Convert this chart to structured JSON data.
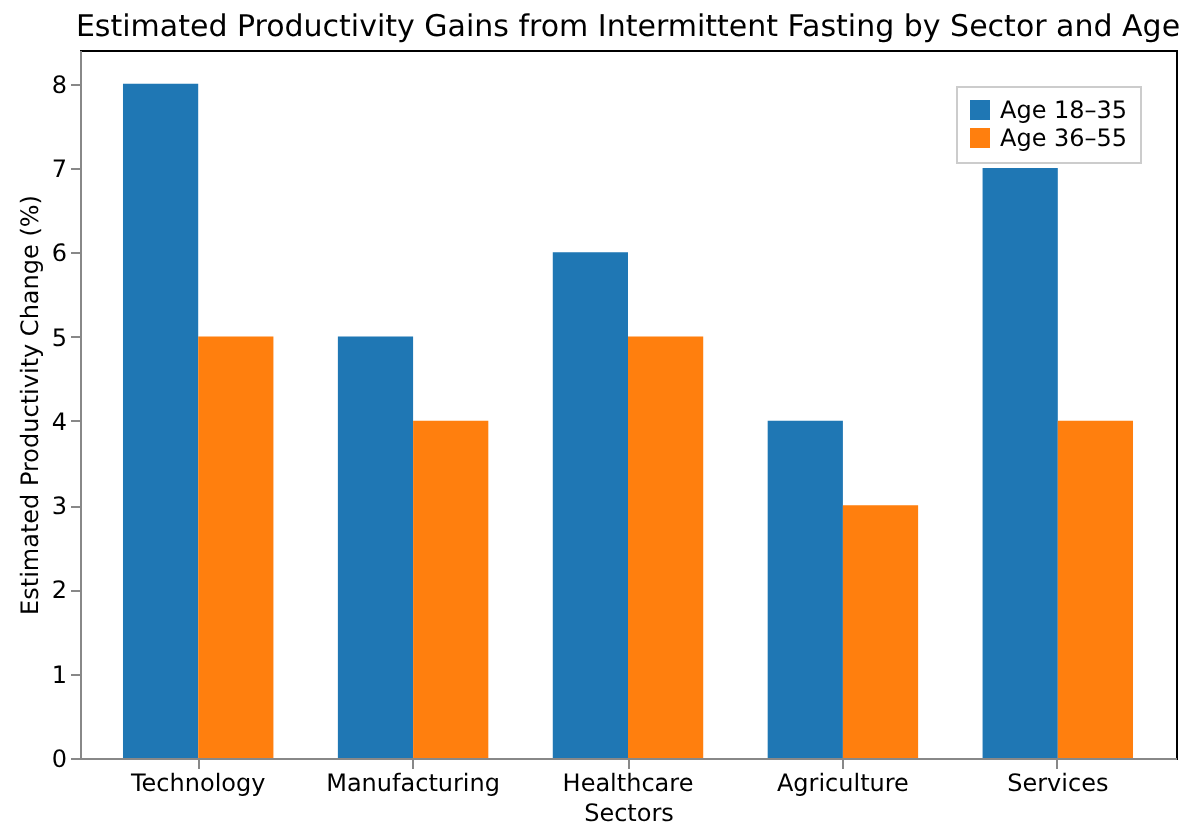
{
  "chart_data": {
    "type": "bar",
    "title": "Estimated Productivity Gains from Intermittent Fasting by Sector and Age",
    "xlabel": "Sectors",
    "ylabel": "Estimated Productivity Change (%)",
    "categories": [
      "Technology",
      "Manufacturing",
      "Healthcare",
      "Agriculture",
      "Services"
    ],
    "series": [
      {
        "name": "Age 18–35",
        "color": "#1f77b4",
        "values": [
          8,
          5,
          6,
          4,
          7
        ]
      },
      {
        "name": "Age 36–55",
        "color": "#ff7f0e",
        "values": [
          5,
          4,
          5,
          3,
          4
        ]
      }
    ],
    "ylim": [
      0,
      8.4
    ],
    "yticks": [
      0,
      1,
      2,
      3,
      4,
      5,
      6,
      7,
      8
    ],
    "legend": "top right"
  }
}
